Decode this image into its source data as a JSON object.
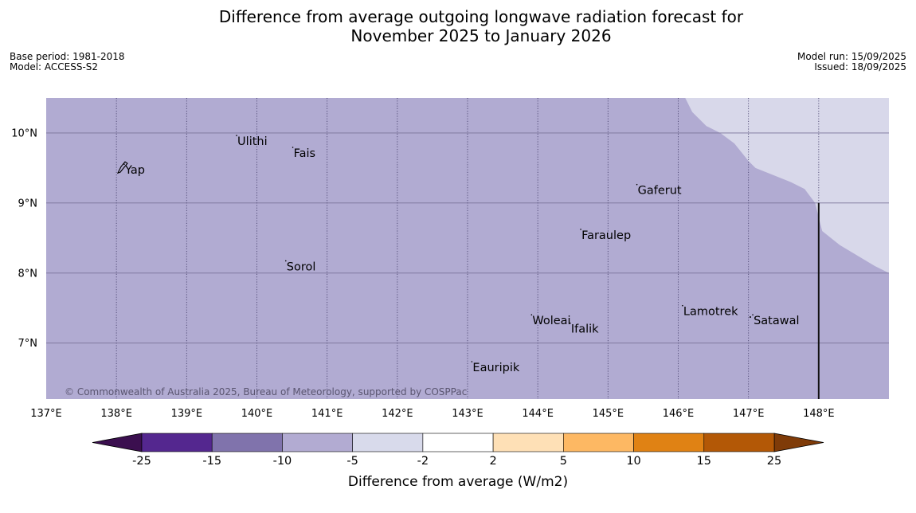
{
  "title_line1": "Difference from average outgoing longwave radiation forecast for",
  "title_line2": "November 2025 to January 2026",
  "base_period": "Base period: 1981-2018",
  "model": "Model: ACCESS-S2",
  "model_run": "Model run: 15/09/2025",
  "issued": "Issued: 18/09/2025",
  "copyright": "© Commonwealth of Australia 2025, Bureau of Meteorology, supported by COSPPac",
  "colors": {
    "map_fill": "#b1abd2",
    "map_fill_light": "#d8d8ea",
    "grid": "#7a7398"
  },
  "map": {
    "lon_range": [
      137,
      149
    ],
    "lat_range": [
      6.2,
      10.5
    ],
    "lat_ticks": [
      {
        "value": 10,
        "label": "10°N"
      },
      {
        "value": 9,
        "label": "9°N"
      },
      {
        "value": 8,
        "label": "8°N"
      },
      {
        "value": 7,
        "label": "7°N"
      }
    ],
    "lon_ticks": [
      {
        "value": 137,
        "label": "137°E"
      },
      {
        "value": 138,
        "label": "138°E"
      },
      {
        "value": 139,
        "label": "139°E"
      },
      {
        "value": 140,
        "label": "140°E"
      },
      {
        "value": 141,
        "label": "141°E"
      },
      {
        "value": 142,
        "label": "142°E"
      },
      {
        "value": 143,
        "label": "143°E"
      },
      {
        "value": 144,
        "label": "144°E"
      },
      {
        "value": 145,
        "label": "145°E"
      },
      {
        "value": 146,
        "label": "146°E"
      },
      {
        "value": 147,
        "label": "147°E"
      },
      {
        "value": 148,
        "label": "148°E"
      }
    ],
    "places": [
      {
        "name": "Yap",
        "lon": 138.1,
        "lat": 9.52
      },
      {
        "name": "Ulithi",
        "lon": 139.7,
        "lat": 9.93
      },
      {
        "name": "Fais",
        "lon": 140.5,
        "lat": 9.76
      },
      {
        "name": "Gaferut",
        "lon": 145.4,
        "lat": 9.23
      },
      {
        "name": "Faraulep",
        "lon": 144.6,
        "lat": 8.59
      },
      {
        "name": "Sorol",
        "lon": 140.4,
        "lat": 8.14
      },
      {
        "name": "Lamotrek",
        "lon": 146.05,
        "lat": 7.5
      },
      {
        "name": "Woleai",
        "lon": 143.9,
        "lat": 7.37
      },
      {
        "name": "Ifalik",
        "lon": 144.45,
        "lat": 7.25
      },
      {
        "name": "Satawal",
        "lon": 147.05,
        "lat": 7.37
      },
      {
        "name": "Eauripik",
        "lon": 143.05,
        "lat": 6.7
      }
    ],
    "light_region": [
      [
        146.1,
        10.5
      ],
      [
        146.2,
        10.3
      ],
      [
        146.4,
        10.1
      ],
      [
        146.6,
        10.0
      ],
      [
        146.8,
        9.85
      ],
      [
        147.0,
        9.6
      ],
      [
        147.1,
        9.5
      ],
      [
        147.6,
        9.3
      ],
      [
        147.8,
        9.2
      ],
      [
        147.95,
        9.0
      ],
      [
        148.05,
        8.6
      ],
      [
        148.3,
        8.4
      ],
      [
        148.8,
        8.1
      ],
      [
        149,
        8.0
      ],
      [
        149,
        10.5
      ]
    ],
    "boundary_line": {
      "lon": 148.0,
      "lat_from": 9.0,
      "lat_to": 6.2
    }
  },
  "colorbar": {
    "label": "Difference from average (W/m2)",
    "ticks": [
      "-25",
      "-15",
      "-10",
      "-5",
      "-2",
      "2",
      "5",
      "10",
      "15",
      "25"
    ],
    "low_extend_color": "#3b0f4f",
    "high_extend_color": "#7f3b08",
    "bin_colors": [
      "#54278f",
      "#8073ac",
      "#b2abd2",
      "#d8daeb",
      "#ffffff",
      "#fee0b6",
      "#fdb863",
      "#e08214",
      "#b35806"
    ]
  }
}
